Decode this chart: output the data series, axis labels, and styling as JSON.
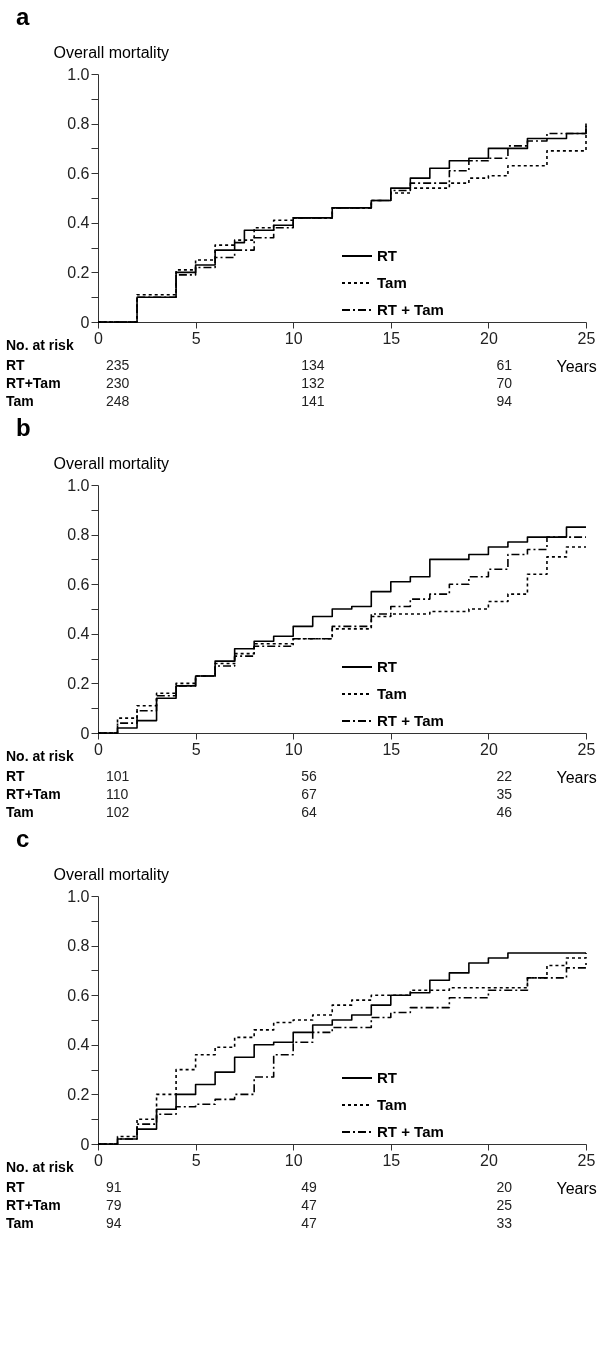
{
  "chart_data": [
    {
      "type": "step",
      "title": "a",
      "ylabel": "Overall mortality",
      "xlabel": "Years",
      "xlim": [
        0,
        25
      ],
      "ylim": [
        0,
        1
      ],
      "xticks": [
        0,
        5,
        10,
        15,
        20,
        25
      ],
      "yticks": [
        0,
        {
          "value": 0.1,
          "label": null
        },
        0.2,
        {
          "value": 0.3,
          "label": null
        },
        0.4,
        {
          "value": 0.5,
          "label": null
        },
        0.6,
        {
          "value": 0.7,
          "label": null
        },
        0.8,
        {
          "value": 0.9,
          "label": null
        },
        {
          "value": 1,
          "label": "1.0"
        }
      ],
      "grid": false,
      "legend": "bottom right",
      "series": [
        {
          "name": "RT",
          "color": "#000000",
          "line_style": "solid",
          "x": [
            0,
            2,
            4,
            5,
            6,
            7,
            7.5,
            9,
            10,
            12,
            14,
            15,
            16,
            17,
            18,
            19,
            20,
            22,
            24,
            25
          ],
          "values": [
            0,
            0.1,
            0.2,
            0.23,
            0.29,
            0.32,
            0.37,
            0.39,
            0.42,
            0.46,
            0.49,
            0.54,
            0.58,
            0.62,
            0.65,
            0.66,
            0.7,
            0.74,
            0.76,
            0.8
          ]
        },
        {
          "name": "Tam",
          "color": "#000000",
          "line_style": "dotted",
          "x": [
            0,
            2,
            4,
            5,
            6,
            7,
            8,
            9,
            10,
            12,
            14,
            15,
            16,
            18,
            19,
            20,
            21,
            23,
            25
          ],
          "values": [
            0,
            0.11,
            0.21,
            0.25,
            0.31,
            0.33,
            0.38,
            0.41,
            0.42,
            0.46,
            0.49,
            0.52,
            0.54,
            0.56,
            0.58,
            0.59,
            0.63,
            0.69,
            0.78
          ]
        },
        {
          "name": "RT + Tam",
          "color": "#000000",
          "line_style": "dashed",
          "x": [
            0,
            2,
            4,
            5,
            6,
            7,
            8,
            9,
            10,
            12,
            14,
            15,
            16,
            18,
            19,
            20,
            21,
            22,
            23,
            25
          ],
          "values": [
            0,
            0.1,
            0.19,
            0.22,
            0.26,
            0.29,
            0.34,
            0.38,
            0.42,
            0.46,
            0.49,
            0.53,
            0.56,
            0.61,
            0.65,
            0.66,
            0.71,
            0.73,
            0.76,
            0.79
          ]
        }
      ],
      "annotations": [
        "No. at risk",
        "RT",
        "235",
        "134",
        "61",
        "RT+Tam",
        "230",
        "132",
        "70",
        "Tam",
        "248",
        "141",
        "94"
      ]
    },
    {
      "type": "step",
      "title": "b",
      "ylabel": "Overall mortality",
      "xlabel": "Years",
      "xlim": [
        0,
        25
      ],
      "ylim": [
        0,
        1
      ],
      "xticks": [
        0,
        5,
        10,
        15,
        20,
        25
      ],
      "yticks": [
        0,
        {
          "value": 0.1,
          "label": null
        },
        0.2,
        {
          "value": 0.3,
          "label": null
        },
        0.4,
        {
          "value": 0.5,
          "label": null
        },
        0.6,
        {
          "value": 0.7,
          "label": null
        },
        0.8,
        {
          "value": 0.9,
          "label": null
        },
        {
          "value": 1,
          "label": "1.0"
        }
      ],
      "grid": false,
      "legend": "bottom right",
      "series": [
        {
          "name": "RT",
          "color": "#000000",
          "line_style": "solid",
          "x": [
            0,
            1,
            2,
            3,
            4,
            5,
            6,
            7,
            8,
            9,
            10,
            11,
            12,
            13,
            14,
            15,
            16,
            17,
            19,
            20,
            21,
            22,
            24,
            25
          ],
          "values": [
            0,
            0.02,
            0.05,
            0.14,
            0.19,
            0.23,
            0.29,
            0.34,
            0.37,
            0.39,
            0.43,
            0.47,
            0.5,
            0.51,
            0.57,
            0.61,
            0.63,
            0.7,
            0.72,
            0.75,
            0.77,
            0.79,
            0.83,
            0.83
          ]
        },
        {
          "name": "Tam",
          "color": "#000000",
          "line_style": "dotted",
          "x": [
            0,
            1,
            2,
            3,
            4,
            5,
            6,
            7,
            8,
            10,
            12,
            14,
            15,
            17,
            19,
            20,
            21,
            22,
            23,
            24,
            25
          ],
          "values": [
            0,
            0.06,
            0.11,
            0.16,
            0.2,
            0.23,
            0.28,
            0.32,
            0.36,
            0.38,
            0.42,
            0.47,
            0.48,
            0.49,
            0.5,
            0.53,
            0.56,
            0.64,
            0.71,
            0.75,
            0.75
          ]
        },
        {
          "name": "RT + Tam",
          "color": "#000000",
          "line_style": "dashed",
          "x": [
            0,
            1,
            2,
            3,
            4,
            5,
            6,
            7,
            8,
            10,
            12,
            14,
            15,
            16,
            17,
            18,
            19,
            20,
            21,
            22,
            23,
            25
          ],
          "values": [
            0,
            0.04,
            0.09,
            0.15,
            0.19,
            0.23,
            0.27,
            0.31,
            0.35,
            0.38,
            0.43,
            0.48,
            0.51,
            0.54,
            0.56,
            0.6,
            0.63,
            0.66,
            0.72,
            0.74,
            0.79,
            0.79
          ]
        }
      ],
      "annotations": [
        "No. at risk",
        "RT",
        "101",
        "56",
        "22",
        "RT+Tam",
        "110",
        "67",
        "35",
        "Tam",
        "102",
        "64",
        "46"
      ]
    },
    {
      "type": "step",
      "title": "c",
      "ylabel": "Overall mortality",
      "xlabel": "Years",
      "xlim": [
        0,
        25
      ],
      "ylim": [
        0,
        1
      ],
      "xticks": [
        0,
        5,
        10,
        15,
        20,
        25
      ],
      "yticks": [
        0,
        {
          "value": 0.1,
          "label": null
        },
        0.2,
        {
          "value": 0.3,
          "label": null
        },
        0.4,
        {
          "value": 0.5,
          "label": null
        },
        0.6,
        {
          "value": 0.7,
          "label": null
        },
        0.8,
        {
          "value": 0.9,
          "label": null
        },
        {
          "value": 1,
          "label": "1.0"
        }
      ],
      "grid": false,
      "legend": "bottom right",
      "series": [
        {
          "name": "RT",
          "color": "#000000",
          "line_style": "solid",
          "x": [
            0,
            1,
            2,
            3,
            4,
            5,
            6,
            7,
            8,
            9,
            10,
            11,
            12,
            13,
            14,
            15,
            16,
            17,
            18,
            19,
            20,
            21,
            25
          ],
          "values": [
            0,
            0.02,
            0.06,
            0.14,
            0.2,
            0.24,
            0.29,
            0.35,
            0.4,
            0.41,
            0.45,
            0.48,
            0.5,
            0.52,
            0.56,
            0.6,
            0.61,
            0.66,
            0.69,
            0.73,
            0.75,
            0.77,
            0.77
          ]
        },
        {
          "name": "Tam",
          "color": "#000000",
          "line_style": "dotted",
          "x": [
            0,
            1,
            2,
            3,
            4,
            5,
            6,
            7,
            8,
            9,
            10,
            11,
            12,
            13,
            14,
            16,
            18,
            20,
            22,
            23,
            24,
            25
          ],
          "values": [
            0,
            0.03,
            0.1,
            0.2,
            0.3,
            0.36,
            0.39,
            0.43,
            0.46,
            0.49,
            0.5,
            0.52,
            0.56,
            0.58,
            0.6,
            0.62,
            0.63,
            0.63,
            0.67,
            0.72,
            0.75,
            0.77
          ]
        },
        {
          "name": "RT + Tam",
          "color": "#000000",
          "line_style": "dashed",
          "x": [
            0,
            1,
            2,
            3,
            4,
            5,
            6,
            7,
            8,
            9,
            10,
            11,
            12,
            14,
            15,
            16,
            18,
            20,
            22,
            24,
            25
          ],
          "values": [
            0,
            0.02,
            0.08,
            0.12,
            0.15,
            0.16,
            0.18,
            0.2,
            0.27,
            0.36,
            0.41,
            0.45,
            0.47,
            0.51,
            0.53,
            0.55,
            0.59,
            0.62,
            0.67,
            0.71,
            0.74
          ]
        }
      ],
      "annotations": [
        "No. at risk",
        "RT",
        "91",
        "49",
        "20",
        "RT+Tam",
        "79",
        "47",
        "25",
        "Tam",
        "94",
        "47",
        "33"
      ]
    }
  ]
}
